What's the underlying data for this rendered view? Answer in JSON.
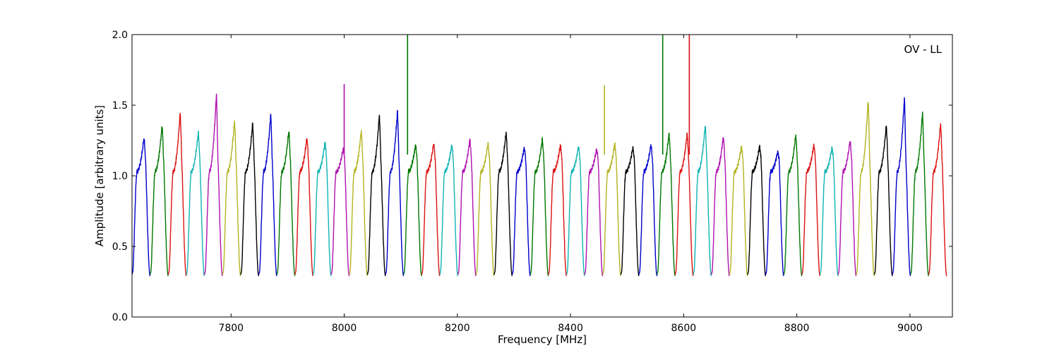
{
  "chart_data": {
    "type": "line",
    "title": "",
    "annotation": "OV - LL",
    "xlabel": "Frequency [MHz]",
    "ylabel": "Amplitude [arbitrary units]",
    "xlim": [
      7625,
      9075
    ],
    "ylim": [
      0.0,
      2.0
    ],
    "x_ticks": [
      7800,
      8000,
      8200,
      8400,
      8600,
      8800,
      9000
    ],
    "y_ticks": [
      0.0,
      0.5,
      1.0,
      1.5,
      2.0
    ],
    "x_tick_labels": [
      "7800",
      "8000",
      "8200",
      "8400",
      "8600",
      "8800",
      "9000"
    ],
    "y_tick_labels": [
      "0.0",
      "0.5",
      "1.0",
      "1.5",
      "2.0"
    ],
    "grid": false,
    "legend": "none",
    "channel_width_mhz": 32,
    "color_cycle": [
      "#0000cc",
      "#007700",
      "#dd1111",
      "#11b3b3",
      "#b011b0",
      "#b3b322",
      "#000000"
    ],
    "series": [
      {
        "start": 7625,
        "peak": 1.27,
        "spike": null
      },
      {
        "start": 7657,
        "peak": 1.36,
        "spike": null
      },
      {
        "start": 7689,
        "peak": 1.45,
        "spike": null
      },
      {
        "start": 7721,
        "peak": 1.31,
        "spike": null
      },
      {
        "start": 7753,
        "peak": 1.58,
        "spike": null
      },
      {
        "start": 7785,
        "peak": 1.39,
        "spike": null
      },
      {
        "start": 7817,
        "peak": 1.37,
        "spike": null
      },
      {
        "start": 7849,
        "peak": 1.44,
        "spike": null
      },
      {
        "start": 7881,
        "peak": 1.32,
        "spike": null
      },
      {
        "start": 7913,
        "peak": 1.27,
        "spike": null
      },
      {
        "start": 7945,
        "peak": 1.24,
        "spike": null
      },
      {
        "start": 7977,
        "peak": 1.19,
        "spike": {
          "x": 8000,
          "y": 1.65
        }
      },
      {
        "start": 8009,
        "peak": 1.32,
        "spike": null
      },
      {
        "start": 8041,
        "peak": 1.43,
        "spike": null
      },
      {
        "start": 8073,
        "peak": 1.46,
        "spike": null
      },
      {
        "start": 8105,
        "peak": 1.22,
        "spike": {
          "x": 8112,
          "y": 2.0
        }
      },
      {
        "start": 8137,
        "peak": 1.23,
        "spike": null
      },
      {
        "start": 8169,
        "peak": 1.22,
        "spike": null
      },
      {
        "start": 8201,
        "peak": 1.26,
        "spike": null
      },
      {
        "start": 8233,
        "peak": 1.23,
        "spike": null
      },
      {
        "start": 8265,
        "peak": 1.31,
        "spike": null
      },
      {
        "start": 8297,
        "peak": 1.2,
        "spike": null
      },
      {
        "start": 8329,
        "peak": 1.26,
        "spike": null
      },
      {
        "start": 8361,
        "peak": 1.22,
        "spike": null
      },
      {
        "start": 8393,
        "peak": 1.21,
        "spike": null
      },
      {
        "start": 8425,
        "peak": 1.19,
        "spike": null
      },
      {
        "start": 8457,
        "peak": 1.23,
        "spike": {
          "x": 8460,
          "y": 1.64
        }
      },
      {
        "start": 8489,
        "peak": 1.2,
        "spike": null
      },
      {
        "start": 8521,
        "peak": 1.22,
        "spike": null
      },
      {
        "start": 8553,
        "peak": 1.3,
        "spike": {
          "x": 8563,
          "y": 2.0
        }
      },
      {
        "start": 8585,
        "peak": 1.3,
        "spike": {
          "x": 8610,
          "y": 2.0
        }
      },
      {
        "start": 8617,
        "peak": 1.36,
        "spike": null
      },
      {
        "start": 8649,
        "peak": 1.28,
        "spike": null
      },
      {
        "start": 8681,
        "peak": 1.21,
        "spike": null
      },
      {
        "start": 8713,
        "peak": 1.21,
        "spike": null
      },
      {
        "start": 8745,
        "peak": 1.17,
        "spike": null
      },
      {
        "start": 8777,
        "peak": 1.29,
        "spike": null
      },
      {
        "start": 8809,
        "peak": 1.22,
        "spike": null
      },
      {
        "start": 8841,
        "peak": 1.2,
        "spike": null
      },
      {
        "start": 8873,
        "peak": 1.25,
        "spike": null
      },
      {
        "start": 8905,
        "peak": 1.54,
        "spike": null
      },
      {
        "start": 8937,
        "peak": 1.36,
        "spike": null
      },
      {
        "start": 8969,
        "peak": 1.55,
        "spike": null
      },
      {
        "start": 9001,
        "peak": 1.45,
        "spike": null
      },
      {
        "start": 9033,
        "peak": 1.37,
        "spike": null
      }
    ]
  }
}
